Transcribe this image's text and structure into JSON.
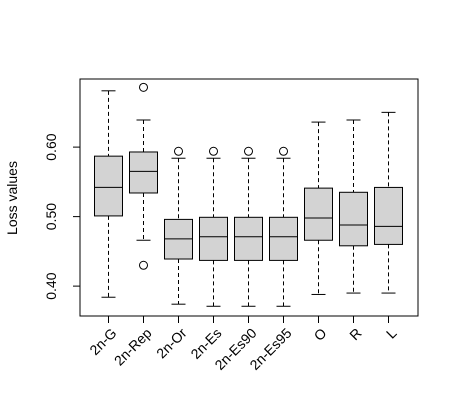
{
  "chart_data": {
    "type": "boxplot",
    "y_label": "Loss values",
    "categories": [
      "2n-G",
      "2n-Rep",
      "2n-Or",
      "2n-Es",
      "2n-Es90",
      "2n-Es95",
      "O",
      "R",
      "L"
    ],
    "boxes": [
      {
        "min": 0.384,
        "q1": 0.501,
        "median": 0.542,
        "q3": 0.587,
        "max": 0.681
      },
      {
        "min": 0.466,
        "q1": 0.534,
        "median": 0.565,
        "q3": 0.593,
        "max": 0.639,
        "outliers": [
          0.686,
          0.43
        ]
      },
      {
        "min": 0.374,
        "q1": 0.439,
        "median": 0.468,
        "q3": 0.496,
        "max": 0.584,
        "outliers": [
          0.594
        ]
      },
      {
        "min": 0.371,
        "q1": 0.437,
        "median": 0.471,
        "q3": 0.499,
        "max": 0.584,
        "outliers": [
          0.594
        ]
      },
      {
        "min": 0.371,
        "q1": 0.437,
        "median": 0.471,
        "q3": 0.499,
        "max": 0.584,
        "outliers": [
          0.594
        ]
      },
      {
        "min": 0.371,
        "q1": 0.437,
        "median": 0.471,
        "q3": 0.499,
        "max": 0.584,
        "outliers": [
          0.594
        ]
      },
      {
        "min": 0.388,
        "q1": 0.466,
        "median": 0.498,
        "q3": 0.541,
        "max": 0.636
      },
      {
        "min": 0.39,
        "q1": 0.458,
        "median": 0.488,
        "q3": 0.535,
        "max": 0.639
      },
      {
        "min": 0.39,
        "q1": 0.46,
        "median": 0.486,
        "q3": 0.542,
        "max": 0.65
      }
    ],
    "color": "#d3d3d3",
    "ylim": [
      0.357,
      0.698
    ],
    "yticks": [
      {
        "value": 0.4,
        "label": "0.40"
      },
      {
        "value": 0.5,
        "label": "0.50"
      },
      {
        "value": 0.6,
        "label": "0.60"
      }
    ]
  }
}
